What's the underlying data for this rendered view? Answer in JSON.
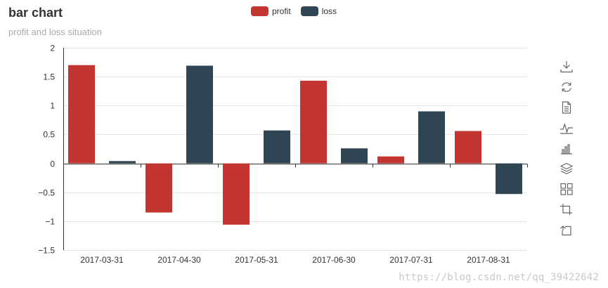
{
  "chart_data": {
    "type": "bar",
    "title": "bar chart",
    "subtitle": "profit and loss situation",
    "categories": [
      "2017-03-31",
      "2017-04-30",
      "2017-05-31",
      "2017-06-30",
      "2017-07-31",
      "2017-08-31"
    ],
    "series": [
      {
        "name": "profit",
        "color": "#c23531",
        "values": [
          1.7,
          -0.85,
          -1.06,
          1.43,
          0.12,
          0.56
        ]
      },
      {
        "name": "loss",
        "color": "#2f4554",
        "values": [
          0.04,
          1.69,
          0.57,
          0.26,
          0.9,
          -0.53
        ]
      }
    ],
    "ylim": [
      -1.5,
      2
    ],
    "yticks": [
      2,
      1.5,
      1,
      0.5,
      0,
      -0.5,
      -1,
      -1.5
    ],
    "ytick_labels": [
      "2",
      "1.5",
      "1",
      "0.5",
      "0",
      "−0.5",
      "−1",
      "−1.5"
    ],
    "xlabel": "",
    "ylabel": "",
    "grid": true,
    "legend_position": "top-center"
  },
  "legend": {
    "items": [
      {
        "label": "profit",
        "color": "#c23531"
      },
      {
        "label": "loss",
        "color": "#2f4554"
      }
    ]
  },
  "toolbox": {
    "icons": [
      "download-icon",
      "refresh-icon",
      "data-view-icon",
      "line-chart-icon",
      "bar-chart-icon",
      "stack-icon",
      "tiled-icon",
      "zoom-icon",
      "zoom-reset-icon"
    ]
  },
  "watermark": "https://blog.csdn.net/qq_39422642"
}
